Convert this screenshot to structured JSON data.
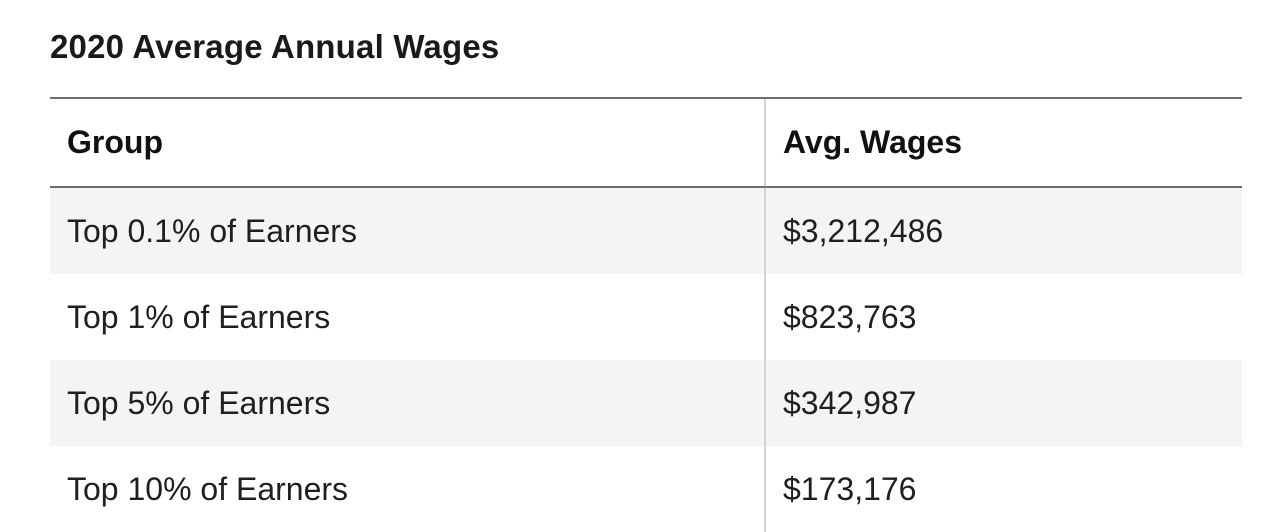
{
  "chart_data": {
    "type": "table",
    "title": "2020 Average Annual Wages",
    "columns": [
      "Group",
      "Avg. Wages"
    ],
    "rows": [
      {
        "group": "Top 0.1% of Earners",
        "wages": "$3,212,486"
      },
      {
        "group": "Top 1% of Earners",
        "wages": "$823,763"
      },
      {
        "group": "Top 5% of Earners",
        "wages": "$342,987"
      },
      {
        "group": "Top 10% of Earners",
        "wages": "$173,176"
      }
    ]
  },
  "colors": {
    "shaded_row": "#f4f4f4",
    "rule": "#6e6e6e",
    "divider": "#d3d3d3"
  }
}
